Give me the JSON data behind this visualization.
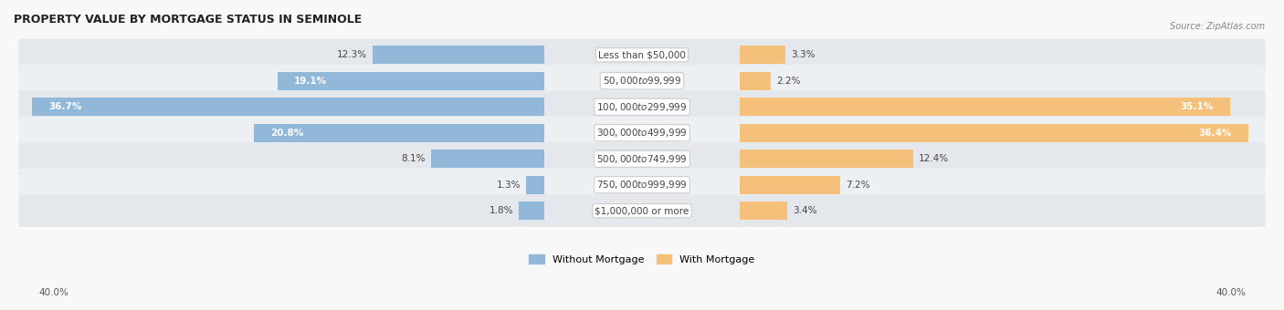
{
  "title": "PROPERTY VALUE BY MORTGAGE STATUS IN SEMINOLE",
  "source": "Source: ZipAtlas.com",
  "categories": [
    "Less than $50,000",
    "$50,000 to $99,999",
    "$100,000 to $299,999",
    "$300,000 to $499,999",
    "$500,000 to $749,999",
    "$750,000 to $999,999",
    "$1,000,000 or more"
  ],
  "without_mortgage": [
    12.3,
    19.1,
    36.7,
    20.8,
    8.1,
    1.3,
    1.8
  ],
  "with_mortgage": [
    3.3,
    2.2,
    35.1,
    36.4,
    12.4,
    7.2,
    3.4
  ],
  "bar_color_left": "#92b8d9",
  "bar_color_right": "#f5c07a",
  "background_color": "#f0f0f0",
  "row_bg_color": "#e8e8e8",
  "row_bg_color2": "#f8f8f8",
  "xlim": 40.0,
  "legend_labels": [
    "Without Mortgage",
    "With Mortgage"
  ],
  "axis_label_left": "40.0%",
  "axis_label_right": "40.0%",
  "label_inside_threshold": 15.0
}
